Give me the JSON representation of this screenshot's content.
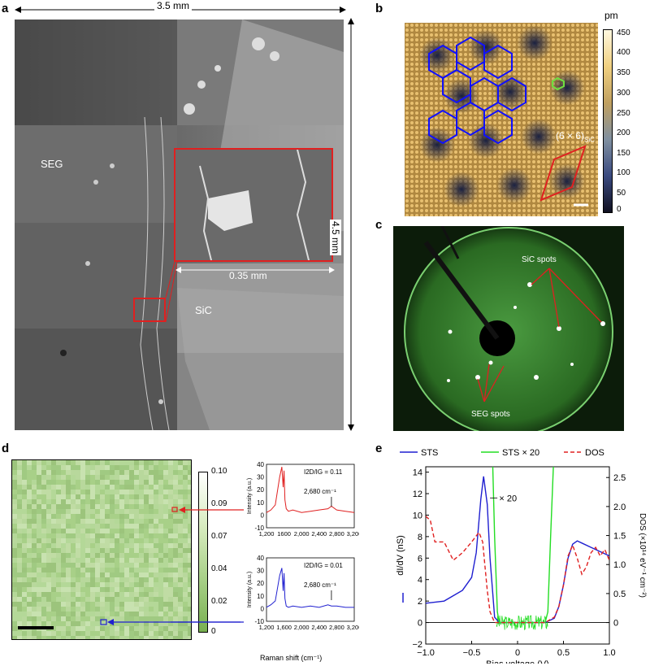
{
  "panels": {
    "a": {
      "label": "a",
      "width_label": "3.5 mm",
      "height_label": "4.5 mm",
      "inset_scale_label": "0.35 mm",
      "region_seg": "SEG",
      "region_sic": "SiC"
    },
    "b": {
      "label": "b",
      "cell_label": "(6 × 6)",
      "cell_sub": "SiC",
      "colorbar_unit": "pm",
      "colorbar_ticks": [
        "450",
        "400",
        "350",
        "300",
        "250",
        "200",
        "150",
        "100",
        "50",
        "0"
      ]
    },
    "c": {
      "label": "c",
      "sic_spots": "SiC spots",
      "seg_spots": "SEG spots"
    },
    "d": {
      "label": "d",
      "colorbar_ticks": [
        "0.10",
        "0.09",
        "0.07",
        "0.04",
        "0.02",
        "0"
      ],
      "spectra": [
        {
          "ratio_label": "I2D/IG = 0.11",
          "peak_label": "2,680 cm⁻¹",
          "ylabel": "Intensity (a.u.)",
          "yticks": [
            "40",
            "30",
            "20",
            "10",
            "0",
            "-10"
          ],
          "xticks": [
            "1,200",
            "1600",
            "2,000",
            "2,400",
            "2,800",
            "3,200"
          ],
          "color": "#e02020"
        },
        {
          "ratio_label": "I2D/IG = 0.01",
          "peak_label": "2,680 cm⁻¹",
          "ylabel": "Intensity (a.u.)",
          "yticks": [
            "40",
            "30",
            "20",
            "10",
            "0",
            "-10"
          ],
          "xticks": [
            "1,200",
            "1,600",
            "2,000",
            "2,400",
            "2,800",
            "3,200"
          ],
          "color": "#2020d0"
        }
      ],
      "xlabel": "Raman shift (cm⁻¹)"
    },
    "e": {
      "label": "e",
      "legend": [
        {
          "name": "STS",
          "color": "#1f1fd0",
          "dash": false
        },
        {
          "name": "STS × 20",
          "color": "#22dd22",
          "dash": false
        },
        {
          "name": "DOS",
          "color": "#e02020",
          "dash": true
        }
      ],
      "annotation": "× 20",
      "xlabel": "Bias voltage (V)",
      "ylabel_left": "dI/dV (nS)",
      "ylabel_right": "DOS (×10¹⁴ eV⁻¹ cm⁻²)",
      "left_ticks": [
        "14",
        "12",
        "10",
        "8",
        "6",
        "4",
        "2",
        "0",
        "−2"
      ],
      "right_ticks": [
        "2.5",
        "2.0",
        "1.5",
        "1.0",
        "0.5",
        "0"
      ],
      "x_ticks": [
        "−1.0",
        "−0.5",
        "0",
        "0.5",
        "1.0"
      ]
    }
  },
  "chart_data": [
    {
      "type": "line",
      "panel": "d-top",
      "x": [
        1200,
        1300,
        1400,
        1500,
        1550,
        1580,
        1600,
        1620,
        1650,
        1700,
        1800,
        2000,
        2200,
        2400,
        2600,
        2680,
        2800,
        3000,
        3200
      ],
      "series": [
        {
          "values": [
            2,
            4,
            8,
            30,
            38,
            22,
            35,
            12,
            5,
            3,
            4,
            2,
            3,
            4,
            5,
            7,
            4,
            3,
            2
          ]
        }
      ],
      "xlim": [
        1200,
        3200
      ],
      "ylim": [
        -10,
        40
      ]
    },
    {
      "type": "line",
      "panel": "d-bottom",
      "x": [
        1200,
        1300,
        1400,
        1500,
        1550,
        1580,
        1600,
        1620,
        1650,
        1700,
        1800,
        2000,
        2200,
        2400,
        2600,
        2680,
        2800,
        3000,
        3200
      ],
      "series": [
        {
          "values": [
            1,
            3,
            6,
            26,
            32,
            14,
            28,
            8,
            2,
            1,
            2,
            1,
            2,
            1,
            3,
            2,
            2,
            1,
            1
          ]
        }
      ],
      "xlim": [
        1200,
        3200
      ],
      "ylim": [
        -10,
        40
      ]
    },
    {
      "type": "line",
      "panel": "e",
      "xlabel": "Bias voltage (V)",
      "xlim": [
        -1.0,
        1.0
      ],
      "ylim": [
        -2,
        14.5
      ],
      "series": [
        {
          "name": "STS",
          "x": [
            -1.0,
            -0.8,
            -0.6,
            -0.5,
            -0.45,
            -0.4,
            -0.37,
            -0.33,
            -0.3,
            -0.25,
            -0.2,
            0,
            0.3,
            0.4,
            0.45,
            0.5,
            0.55,
            0.6,
            0.65,
            0.7,
            0.8,
            0.9,
            1.0
          ],
          "values": [
            1.8,
            2.0,
            3.0,
            4.2,
            6.5,
            11.5,
            13.6,
            11.0,
            6.0,
            0.5,
            0.0,
            0.0,
            0.0,
            0.4,
            1.5,
            3.5,
            6.0,
            7.3,
            7.6,
            7.4,
            7.0,
            6.6,
            6.2
          ]
        },
        {
          "name": "STS × 20",
          "x": [
            -0.27,
            -0.25,
            -0.22,
            -0.2,
            0,
            0.3,
            0.33,
            0.36,
            0.39
          ],
          "values": [
            14.5,
            8.0,
            1.0,
            0.0,
            0.0,
            0.0,
            1.0,
            8.0,
            14.5
          ]
        },
        {
          "name": "DOS",
          "x": [
            -1.0,
            -0.95,
            -0.9,
            -0.8,
            -0.7,
            -0.6,
            -0.5,
            -0.42,
            -0.38,
            -0.33,
            -0.3,
            -0.25,
            0,
            0.3,
            0.4,
            0.45,
            0.5,
            0.55,
            0.6,
            0.65,
            0.7,
            0.75,
            0.8,
            0.85,
            0.9,
            0.95,
            1.0
          ],
          "values": [
            9.9,
            9.5,
            7.5,
            7.5,
            5.8,
            6.5,
            7.5,
            8.4,
            7.5,
            3.0,
            1.0,
            0.0,
            0.0,
            0.0,
            0.5,
            1.5,
            3.5,
            6.2,
            7.2,
            6.0,
            4.5,
            5.2,
            6.5,
            7.0,
            6.2,
            6.8,
            5.8
          ]
        }
      ]
    }
  ]
}
